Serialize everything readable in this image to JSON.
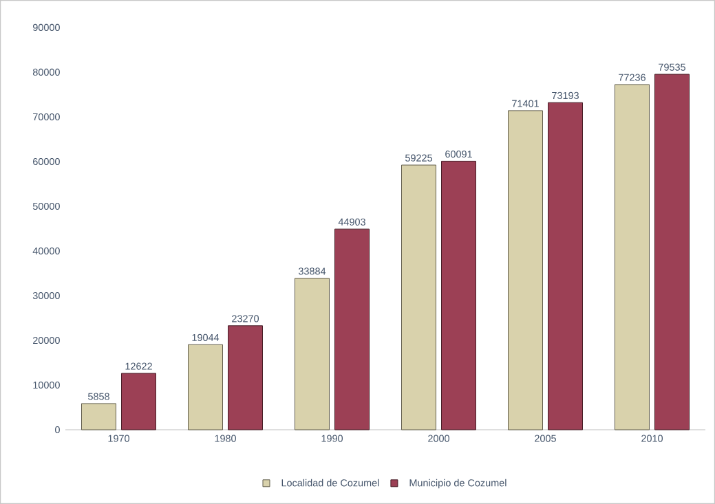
{
  "chart_data": {
    "type": "bar",
    "categories": [
      "1970",
      "1980",
      "1990",
      "2000",
      "2005",
      "2010"
    ],
    "series": [
      {
        "name": "Localidad de Cozumel",
        "color": "#d9d2ac",
        "values": [
          5858,
          19044,
          33884,
          59225,
          71401,
          77236
        ]
      },
      {
        "name": "Municipio de Cozumel",
        "color": "#9c4055",
        "values": [
          12622,
          23270,
          44903,
          60091,
          73193,
          79535
        ]
      }
    ],
    "ylim": [
      0,
      90000
    ],
    "yticks": [
      0,
      10000,
      20000,
      30000,
      40000,
      50000,
      60000,
      70000,
      80000,
      90000
    ],
    "data_labels": true,
    "legend": "bottom",
    "grid": false
  }
}
